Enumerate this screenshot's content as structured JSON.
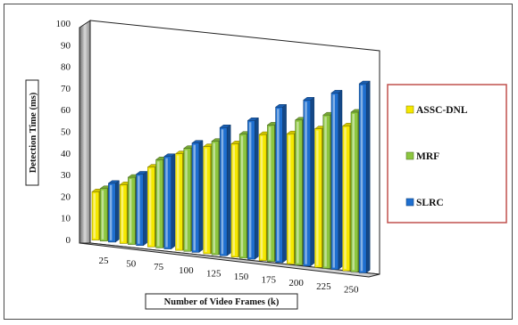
{
  "chart_data": {
    "type": "bar",
    "title": "",
    "xlabel": "Number of Video Frames (k)",
    "ylabel": "Detection Time (ms)",
    "ylim": [
      0,
      100
    ],
    "yticks": [
      "0",
      "10",
      "20",
      "30",
      "40",
      "50",
      "60",
      "70",
      "80",
      "90",
      "100"
    ],
    "categories": [
      "25",
      "50",
      "75",
      "100",
      "125",
      "150",
      "175",
      "200",
      "225",
      "250"
    ],
    "series": [
      {
        "name": "ASSC-DNL",
        "color": "#f5e800",
        "values": [
          23,
          28,
          38,
          46,
          51,
          54,
          60,
          62,
          66,
          69
        ]
      },
      {
        "name": "MRF",
        "color": "#8cc63f",
        "values": [
          25,
          32,
          42,
          49,
          54,
          59,
          65,
          69,
          73,
          76
        ]
      },
      {
        "name": "SLRC",
        "color": "#1e6fd0",
        "values": [
          28,
          34,
          44,
          52,
          61,
          66,
          74,
          79,
          84,
          90
        ]
      }
    ],
    "grid": false,
    "legend": "right",
    "style": "3d-clustered"
  }
}
